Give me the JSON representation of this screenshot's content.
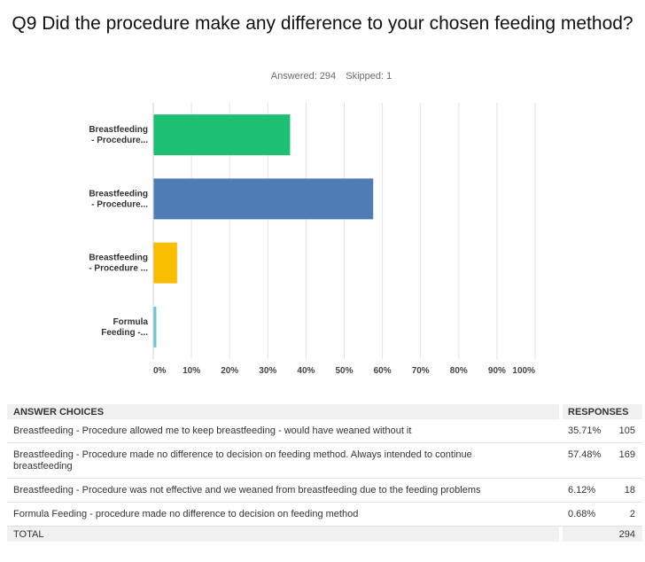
{
  "title": "Q9 Did the procedure make any difference to your chosen feeding method?",
  "answered_label": "Answered: 294",
  "skipped_label": "Skipped: 1",
  "chart_data": {
    "type": "bar",
    "orientation": "horizontal",
    "categories": [
      [
        "Breastfeeding",
        "- Procedure..."
      ],
      [
        "Breastfeeding",
        "- Procedure..."
      ],
      [
        "Breastfeeding",
        "- Procedure ..."
      ],
      [
        "Formula",
        "Feeding -..."
      ]
    ],
    "values": [
      35.71,
      57.48,
      6.12,
      0.68
    ],
    "colors": [
      "#1dbf73",
      "#507cb6",
      "#f9be00",
      "#6bc8cd"
    ],
    "xlim": [
      0,
      100
    ],
    "xticks": [
      "0%",
      "10%",
      "20%",
      "30%",
      "40%",
      "50%",
      "60%",
      "70%",
      "80%",
      "90%",
      "100%"
    ],
    "grid": true
  },
  "table": {
    "header_choices": "ANSWER CHOICES",
    "header_responses": "RESPONSES",
    "rows": [
      {
        "text": "Breastfeeding - Procedure allowed me to keep breastfeeding - would have weaned without it",
        "pct": "35.71%",
        "count": "105"
      },
      {
        "text": "Breastfeeding - Procedure made no difference to decision on feeding method.  Always intended to continue breastfeeding",
        "pct": "57.48%",
        "count": "169"
      },
      {
        "text": "Breastfeeding - Procedure was not effective and we weaned from breastfeeding due to the feeding problems",
        "pct": "6.12%",
        "count": "18"
      },
      {
        "text": "Formula Feeding - procedure made no difference to decision on feeding method",
        "pct": "0.68%",
        "count": "2"
      }
    ],
    "total_label": "TOTAL",
    "total_count": "294"
  }
}
